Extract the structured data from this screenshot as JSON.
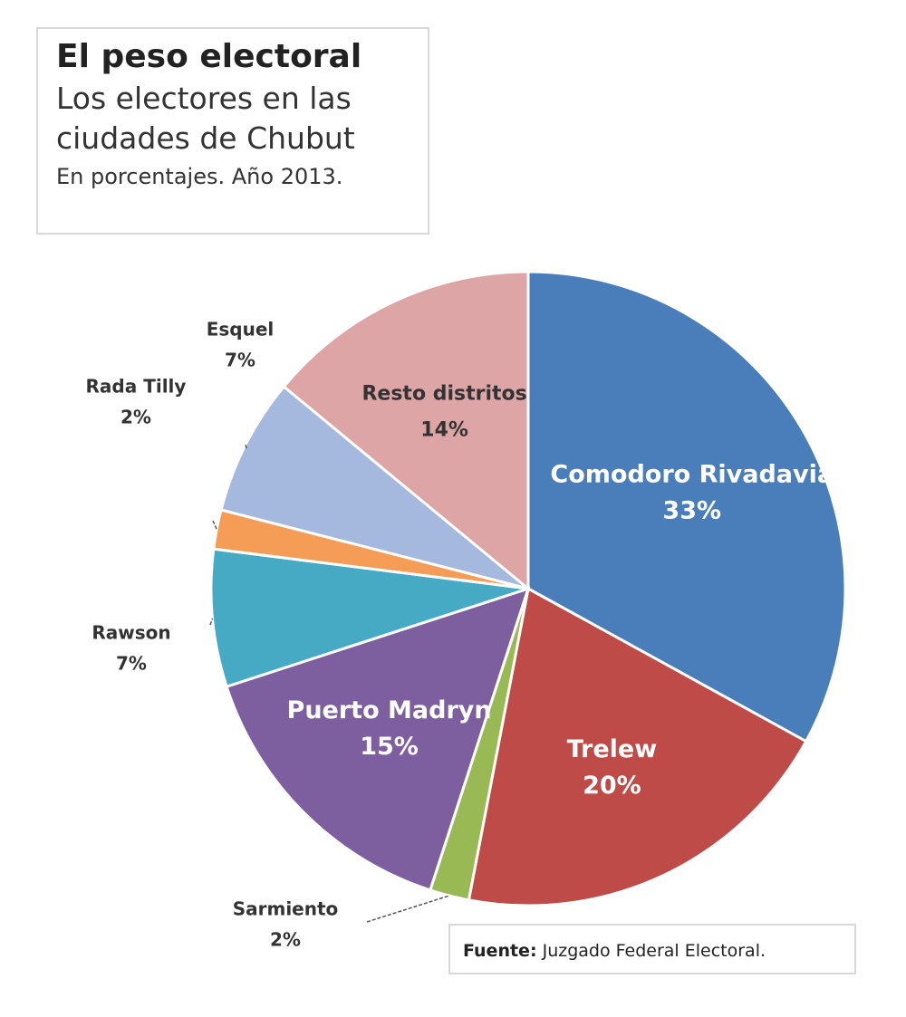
{
  "chart_data": {
    "type": "pie",
    "title": "El peso electoral",
    "subtitle": "Los electores en las ciudades de Chubut",
    "note": "En porcentajes. Año 2013.",
    "source_label": "Fuente:",
    "source": "Juzgado Federal Electoral.",
    "categories": [
      "Comodoro Rivadavia",
      "Trelew",
      "Sarmiento",
      "Puerto Madryn",
      "Rawson",
      "Rada Tilly",
      "Esquel",
      "Resto distritos"
    ],
    "values": [
      33,
      20,
      2,
      15,
      7,
      2,
      7,
      14
    ],
    "value_labels": [
      "33%",
      "20%",
      "2%",
      "15%",
      "7%",
      "2%",
      "7%",
      "14%"
    ],
    "colors": [
      "#4a7ebb",
      "#be4b48",
      "#98b954",
      "#7d5fa0",
      "#46aac5",
      "#f59d56",
      "#a5b8de",
      "#dda5a5"
    ]
  }
}
